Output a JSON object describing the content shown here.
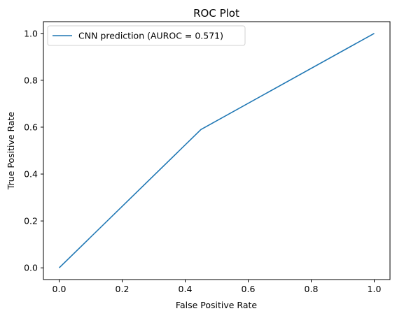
{
  "chart_data": {
    "type": "line",
    "title": "ROC Plot",
    "xlabel": "False Positive Rate",
    "ylabel": "True Positive Rate",
    "xlim": [
      -0.05,
      1.05
    ],
    "ylim": [
      -0.05,
      1.05
    ],
    "x_ticks": [
      0.0,
      0.2,
      0.4,
      0.6,
      0.8,
      1.0
    ],
    "y_ticks": [
      0.0,
      0.2,
      0.4,
      0.6,
      0.8,
      1.0
    ],
    "x_tick_labels": [
      "0.0",
      "0.2",
      "0.4",
      "0.6",
      "0.8",
      "1.0"
    ],
    "y_tick_labels": [
      "0.0",
      "0.2",
      "0.4",
      "0.6",
      "0.8",
      "1.0"
    ],
    "grid": false,
    "legend_position": "top-left",
    "series": [
      {
        "name": "CNN prediction (AUROC = 0.571)",
        "color": "#1f77b4",
        "x": [
          0.0,
          0.45,
          1.0
        ],
        "y": [
          0.0,
          0.59,
          1.0
        ]
      }
    ]
  }
}
